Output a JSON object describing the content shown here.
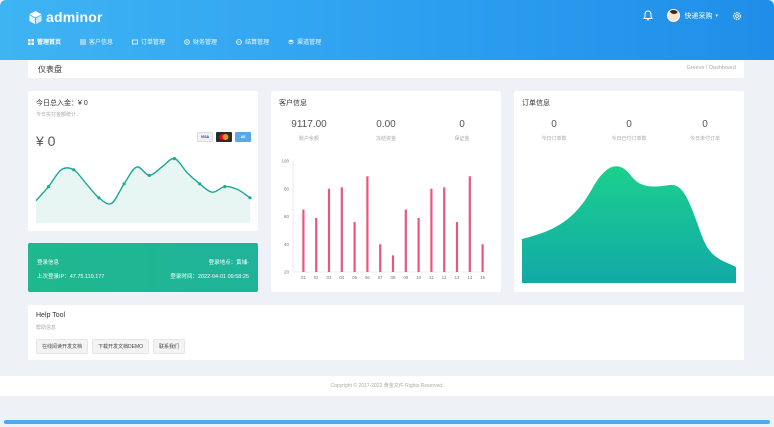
{
  "app": {
    "name": "adminor"
  },
  "header": {
    "user_name": "快递采购"
  },
  "nav": [
    {
      "label": "管理首页"
    },
    {
      "label": "客户信息"
    },
    {
      "label": "订单管理"
    },
    {
      "label": "财务管理"
    },
    {
      "label": "结算管理"
    },
    {
      "label": "渠道管理"
    }
  ],
  "breadcrumb": {
    "title": "仪表盘",
    "trail": "Greeve / Dashboard"
  },
  "income": {
    "title": "今日总入金：¥ 0",
    "subtitle": "今日实付金额统计：",
    "amount": "¥ 0",
    "cards": [
      "VISA",
      "MC",
      "AE"
    ],
    "chart_data": {
      "type": "area",
      "values": [
        8,
        13,
        19,
        19,
        14,
        9,
        7,
        14,
        20,
        17,
        20,
        23,
        18,
        14,
        11,
        13,
        12,
        9
      ]
    }
  },
  "login": {
    "label": "登录信息",
    "place": "登录地点：黄埔-",
    "ip": "上次登录IP：47.75.119.177",
    "time": "登录时间：2022-04-01 09:58:25"
  },
  "customers": {
    "title": "客户信息",
    "stats": [
      {
        "value": "9117.00",
        "label": "账户余额"
      },
      {
        "value": "0.00",
        "label": "冻结资金"
      },
      {
        "value": "0",
        "label": "保证金"
      }
    ],
    "chart_data": {
      "type": "bar",
      "categories": [
        "01",
        "02",
        "03",
        "04",
        "05",
        "06",
        "07",
        "08",
        "09",
        "10",
        "11",
        "12",
        "13",
        "14",
        "15"
      ],
      "values": [
        65,
        59,
        80,
        81,
        56,
        89,
        40,
        32,
        65,
        59,
        80,
        81,
        56,
        89,
        40
      ],
      "yticks": [
        "20",
        "40",
        "60",
        "80",
        "100"
      ],
      "ylim": [
        20,
        100
      ],
      "color": "#e8577c"
    }
  },
  "orders": {
    "title": "订单信息",
    "stats": [
      {
        "value": "0",
        "label": "今日订单数"
      },
      {
        "value": "0",
        "label": "今日已付订单数"
      },
      {
        "value": "0",
        "label": "今日未付订单"
      }
    ],
    "chart_data": {
      "type": "area",
      "colors": [
        "#1bd08c",
        "#12a9a8"
      ]
    }
  },
  "help": {
    "title": "Help Tool",
    "subtitle": "帮助信息",
    "buttons": [
      "在线阅读开发文档",
      "下载开发文档DEMO",
      "联系我们"
    ]
  },
  "footer": {
    "text": "Copyright © 2017-2022 黄金文件 Rights Reserved."
  }
}
